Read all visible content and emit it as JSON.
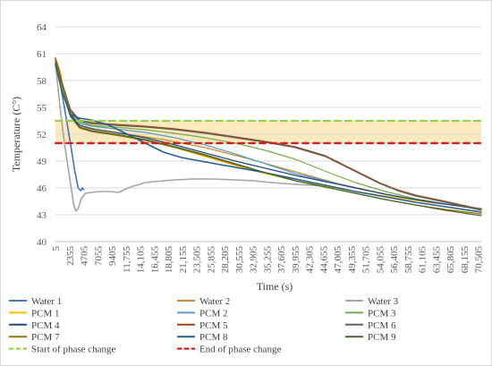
{
  "chart_data": {
    "type": "line",
    "title": "",
    "xlabel": "Time (s)",
    "ylabel": "Temperature (C°)",
    "ylim": [
      40,
      64
    ],
    "xlim": [
      5,
      71000
    ],
    "grid": "horizontal",
    "legend_position": "bottom",
    "y_ticks": [
      40,
      43,
      46,
      49,
      52,
      55,
      58,
      61,
      64
    ],
    "x_tick_labels": [
      "5",
      "2355",
      "4705",
      "7055",
      "9405",
      "11,755",
      "14,105",
      "16,455",
      "18,805",
      "21,155",
      "23,505",
      "25,855",
      "28,205",
      "30,555",
      "32,905",
      "35,255",
      "37,605",
      "39,955",
      "42,305",
      "44,655",
      "47,005",
      "49,355",
      "51,705",
      "54,055",
      "56,405",
      "58,755",
      "61,105",
      "63,455",
      "65,805",
      "68,155",
      "70,505"
    ],
    "x_tick_values": [
      5,
      2355,
      4705,
      7055,
      9405,
      11755,
      14105,
      16455,
      18805,
      21155,
      23505,
      25855,
      28205,
      30555,
      32905,
      35255,
      37605,
      39955,
      42305,
      44655,
      47005,
      49355,
      51705,
      54055,
      56405,
      58755,
      61105,
      63455,
      65805,
      68155,
      70505
    ],
    "phase_band": [
      51,
      53.5
    ],
    "series": [
      {
        "name": "Water 1",
        "color": "#4472c4",
        "width": 1.6,
        "dash": "",
        "x": [
          5,
          700,
          1500,
          2500,
          3200,
          3800,
          4200,
          4500,
          4705
        ],
        "y": [
          60.5,
          58,
          55,
          51,
          48,
          46,
          45.7,
          46,
          45.8
        ]
      },
      {
        "name": "Water 2",
        "color": "#c98b2a",
        "width": 1.2,
        "dash": "",
        "x": [
          5,
          800,
          1800,
          3000,
          4000,
          5000,
          7000,
          12000,
          18000,
          25000,
          32000,
          40000,
          47000,
          55000,
          62000,
          71000
        ],
        "y": [
          60.5,
          59,
          55.5,
          53.5,
          53,
          52.8,
          52.5,
          52,
          51.4,
          50.5,
          49.3,
          47.8,
          46.5,
          45.3,
          44.4,
          43.7
        ]
      },
      {
        "name": "Water 3",
        "color": "#a5a5a5",
        "width": 1.6,
        "dash": "",
        "x": [
          5,
          600,
          1500,
          2400,
          3000,
          3400,
          3800,
          4300,
          5000,
          6000,
          7500,
          9000,
          10500,
          12500,
          15000,
          18000,
          20000,
          23000,
          26000,
          30000,
          33000,
          36000,
          40000,
          45000
        ],
        "y": [
          60,
          56,
          51,
          47,
          44.3,
          43.4,
          43.7,
          44.8,
          45.4,
          45.5,
          45.6,
          45.6,
          45.5,
          46.1,
          46.6,
          46.8,
          46.9,
          47.0,
          47.0,
          46.9,
          46.8,
          46.6,
          46.4,
          46.2
        ]
      },
      {
        "name": "PCM 1",
        "color": "#ffc000",
        "width": 1.2,
        "dash": "",
        "x": [
          5,
          1000,
          2500,
          4000,
          6000,
          10000,
          15000,
          20000,
          25000,
          30000,
          35000,
          40000,
          45000,
          50000,
          55000,
          60000,
          65000,
          71000
        ],
        "y": [
          60,
          57,
          54,
          52.8,
          52.4,
          52,
          51.4,
          50.5,
          49.5,
          48.5,
          47.6,
          46.8,
          46.2,
          45.6,
          45.1,
          44.6,
          44.2,
          43.7
        ]
      },
      {
        "name": "PCM 2",
        "color": "#5b9bd5",
        "width": 1.2,
        "dash": "",
        "x": [
          5,
          1000,
          2500,
          4000,
          6000,
          10000,
          15000,
          20000,
          25000,
          30000,
          35000,
          40000,
          45000,
          50000,
          55000,
          60000,
          65000,
          71000
        ],
        "y": [
          60,
          57,
          54.3,
          53.2,
          52.9,
          52.6,
          52.2,
          51.6,
          50.8,
          49.8,
          48.7,
          47.6,
          46.8,
          46,
          45.3,
          44.7,
          44.2,
          43.7
        ]
      },
      {
        "name": "PCM 3",
        "color": "#70ad47",
        "width": 1.2,
        "dash": "",
        "x": [
          5,
          1000,
          2500,
          4000,
          6000,
          10000,
          15000,
          20000,
          25000,
          30000,
          35000,
          40000,
          43000,
          46000,
          50000,
          55000,
          60000,
          65000,
          71000
        ],
        "y": [
          60.2,
          57.5,
          54.5,
          53.4,
          53,
          52.8,
          52.5,
          52.1,
          51.6,
          51,
          50.2,
          49.2,
          48.4,
          47.6,
          46.6,
          45.6,
          44.8,
          44.2,
          43.6
        ]
      },
      {
        "name": "PCM 4",
        "color": "#264478",
        "width": 1.2,
        "dash": "",
        "x": [
          5,
          1000,
          2500,
          4000,
          6000,
          10000,
          15000,
          20000,
          25000,
          30000,
          35000,
          40000,
          45000,
          50000,
          55000,
          60000,
          65000,
          71000
        ],
        "y": [
          60,
          57,
          54.2,
          53,
          52.6,
          52.2,
          51.6,
          50.8,
          49.9,
          49,
          48.2,
          47.4,
          46.7,
          46,
          45.3,
          44.7,
          44.2,
          43.6
        ]
      },
      {
        "name": "PCM 5",
        "color": "#9e480e",
        "width": 1.2,
        "dash": "",
        "x": [
          5,
          1000,
          2500,
          4000,
          6000,
          10000,
          15000,
          20000,
          25000,
          30000,
          35000,
          40000,
          45000,
          48000,
          51000,
          54000,
          57000,
          60000,
          65000,
          71000
        ],
        "y": [
          60.5,
          58,
          54.8,
          53.6,
          53.3,
          53.1,
          52.9,
          52.6,
          52.2,
          51.7,
          51.2,
          50.6,
          49.6,
          48.6,
          47.6,
          46.6,
          45.8,
          45.2,
          44.5,
          43.6
        ]
      },
      {
        "name": "PCM 6",
        "color": "#636363",
        "width": 1.2,
        "dash": "",
        "x": [
          5,
          1000,
          2500,
          4000,
          6000,
          10000,
          15000,
          20000,
          25000,
          30000,
          35000,
          40000,
          45000,
          48000,
          51000,
          54000,
          57000,
          60000,
          65000,
          71000
        ],
        "y": [
          60.3,
          57.8,
          54.6,
          53.5,
          53.2,
          53,
          52.8,
          52.5,
          52.1,
          51.6,
          51.1,
          50.5,
          49.5,
          48.5,
          47.5,
          46.5,
          45.7,
          45.1,
          44.4,
          43.5
        ]
      },
      {
        "name": "PCM 7",
        "color": "#997300",
        "width": 1.2,
        "dash": "",
        "x": [
          5,
          1000,
          2500,
          4000,
          6000,
          10000,
          15000,
          20000,
          25000,
          30000,
          35000,
          40000,
          45000,
          50000,
          55000,
          60000,
          65000,
          71000
        ],
        "y": [
          60.2,
          57.2,
          54,
          52.7,
          52.3,
          51.9,
          51.3,
          50.5,
          49.6,
          48.6,
          47.7,
          46.8,
          46.1,
          45.4,
          44.7,
          44.1,
          43.6,
          43.1
        ]
      },
      {
        "name": "PCM 8",
        "color": "#255e91",
        "width": 1.6,
        "dash": "",
        "x": [
          5,
          1000,
          2500,
          4000,
          6000,
          9000,
          12000,
          15000,
          18000,
          21000,
          25000,
          30000,
          35000,
          40000,
          45000,
          50000,
          55000,
          60000,
          65000,
          71000
        ],
        "y": [
          59.8,
          57,
          54.2,
          53.8,
          53.6,
          53,
          52,
          51,
          50,
          49.4,
          48.9,
          48.3,
          47.7,
          47,
          46.3,
          45.6,
          45,
          44.4,
          43.9,
          43.3
        ]
      },
      {
        "name": "PCM 9",
        "color": "#43682b",
        "width": 1.2,
        "dash": "",
        "x": [
          5,
          1000,
          2500,
          4000,
          6000,
          10000,
          15000,
          20000,
          25000,
          30000,
          35000,
          40000,
          45000,
          50000,
          55000,
          60000,
          65000,
          71000
        ],
        "y": [
          60,
          57,
          54,
          52.8,
          52.4,
          52,
          51.4,
          50.6,
          49.7,
          48.7,
          47.7,
          46.8,
          46.1,
          45.4,
          44.7,
          44.1,
          43.5,
          42.9
        ]
      },
      {
        "name": "Start of phase change",
        "color": "#92d050",
        "width": 2.2,
        "dash": "7,5",
        "x": [
          5,
          71000
        ],
        "y": [
          53.5,
          53.5
        ]
      },
      {
        "name": "End of phase change",
        "color": "#e11b1b",
        "width": 2.2,
        "dash": "7,5",
        "x": [
          5,
          71000
        ],
        "y": [
          51,
          51
        ]
      }
    ]
  }
}
